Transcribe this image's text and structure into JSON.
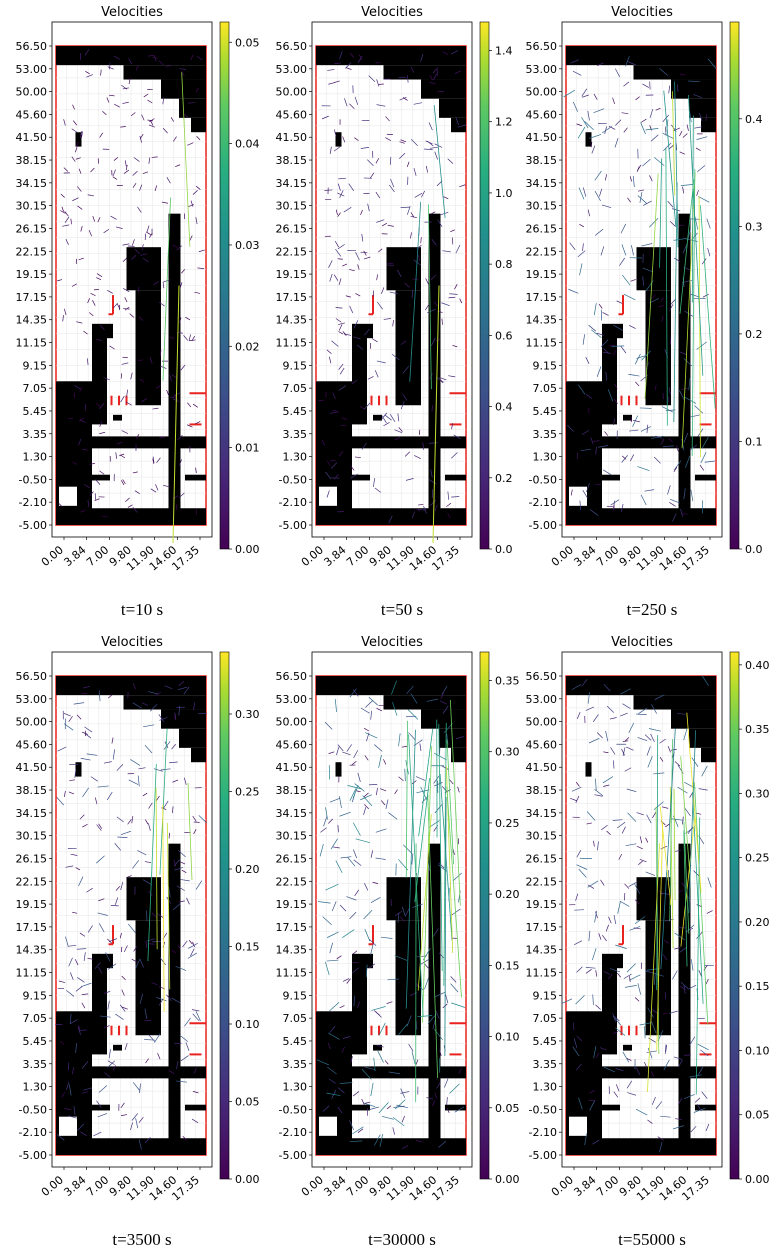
{
  "figure": {
    "panel_title": "Velocities"
  },
  "chart_data": [
    {
      "type": "quiver",
      "title": "Velocities",
      "caption": "t=10 s",
      "x_ticks": [
        "0.00",
        "3.84",
        "7.00",
        "9.80",
        "11.90",
        "14.60",
        "17.35"
      ],
      "y_ticks": [
        "56.50",
        "53.00",
        "50.00",
        "45.60",
        "41.50",
        "38.15",
        "34.15",
        "30.15",
        "26.15",
        "22.15",
        "19.15",
        "17.15",
        "14.35",
        "11.15",
        "9.15",
        "7.05",
        "5.45",
        "3.35",
        "1.30",
        "-0.50",
        "-2.10",
        "-5.00"
      ],
      "colorbar": {
        "min": 0.0,
        "max": 0.052,
        "ticks": [
          "0.00",
          "0.01",
          "0.02",
          "0.03",
          "0.04",
          "0.05"
        ],
        "tick_values": [
          0,
          0.01,
          0.02,
          0.03,
          0.04,
          0.05
        ],
        "colormap": "viridis"
      }
    },
    {
      "type": "quiver",
      "title": "Velocities",
      "caption": "t=50 s",
      "x_ticks": [
        "0.00",
        "3.84",
        "7.00",
        "9.80",
        "11.90",
        "14.60",
        "17.35"
      ],
      "y_ticks": [
        "56.50",
        "53.00",
        "50.00",
        "45.60",
        "41.50",
        "38.15",
        "34.15",
        "30.15",
        "26.15",
        "22.15",
        "19.15",
        "17.15",
        "14.35",
        "11.15",
        "9.15",
        "7.05",
        "5.45",
        "3.35",
        "1.30",
        "-0.50",
        "-2.10",
        "-5.00"
      ],
      "colorbar": {
        "min": 0.0,
        "max": 1.48,
        "ticks": [
          "0.0",
          "0.2",
          "0.4",
          "0.6",
          "0.8",
          "1.0",
          "1.2",
          "1.4"
        ],
        "tick_values": [
          0,
          0.2,
          0.4,
          0.6,
          0.8,
          1.0,
          1.2,
          1.4
        ],
        "colormap": "viridis"
      }
    },
    {
      "type": "quiver",
      "title": "Velocities",
      "caption": "t=250 s",
      "x_ticks": [
        "0.00",
        "3.84",
        "7.00",
        "9.80",
        "11.90",
        "14.60",
        "17.35"
      ],
      "y_ticks": [
        "56.50",
        "53.00",
        "50.00",
        "45.60",
        "41.50",
        "38.15",
        "34.15",
        "30.15",
        "26.15",
        "22.15",
        "19.15",
        "17.15",
        "14.35",
        "11.15",
        "9.15",
        "7.05",
        "5.45",
        "3.35",
        "1.30",
        "-0.50",
        "-2.10",
        "-5.00"
      ],
      "colorbar": {
        "min": 0.0,
        "max": 0.49,
        "ticks": [
          "0.0",
          "0.1",
          "0.2",
          "0.3",
          "0.4"
        ],
        "tick_values": [
          0,
          0.1,
          0.2,
          0.3,
          0.4
        ],
        "colormap": "viridis"
      }
    },
    {
      "type": "quiver",
      "title": "Velocities",
      "caption": "t=3500 s",
      "x_ticks": [
        "0.00",
        "3.84",
        "7.00",
        "9.80",
        "11.90",
        "14.60",
        "17.35"
      ],
      "y_ticks": [
        "56.50",
        "53.00",
        "50.00",
        "45.60",
        "41.50",
        "38.15",
        "34.15",
        "30.15",
        "26.15",
        "22.15",
        "19.15",
        "17.15",
        "14.35",
        "11.15",
        "9.15",
        "7.05",
        "5.45",
        "3.35",
        "1.30",
        "-0.50",
        "-2.10",
        "-5.00"
      ],
      "colorbar": {
        "min": 0.0,
        "max": 0.34,
        "ticks": [
          "0.00",
          "0.05",
          "0.10",
          "0.15",
          "0.20",
          "0.25",
          "0.30"
        ],
        "tick_values": [
          0,
          0.05,
          0.1,
          0.15,
          0.2,
          0.25,
          0.3
        ],
        "colormap": "viridis"
      }
    },
    {
      "type": "quiver",
      "title": "Velocities",
      "caption": "t=30000 s",
      "x_ticks": [
        "0.00",
        "3.84",
        "7.00",
        "9.80",
        "11.90",
        "14.60",
        "17.35"
      ],
      "y_ticks": [
        "56.50",
        "53.00",
        "50.00",
        "45.60",
        "41.50",
        "38.15",
        "34.15",
        "30.15",
        "26.15",
        "22.15",
        "19.15",
        "17.15",
        "14.35",
        "11.15",
        "9.15",
        "7.05",
        "5.45",
        "3.35",
        "1.30",
        "-0.50",
        "-2.10",
        "-5.00"
      ],
      "colorbar": {
        "min": 0.0,
        "max": 0.37,
        "ticks": [
          "0.00",
          "0.05",
          "0.10",
          "0.15",
          "0.20",
          "0.25",
          "0.30",
          "0.35"
        ],
        "tick_values": [
          0,
          0.05,
          0.1,
          0.15,
          0.2,
          0.25,
          0.3,
          0.35
        ],
        "colormap": "viridis"
      }
    },
    {
      "type": "quiver",
      "title": "Velocities",
      "caption": "t=55000 s",
      "x_ticks": [
        "0.00",
        "3.84",
        "7.00",
        "9.80",
        "11.90",
        "14.60",
        "17.35"
      ],
      "y_ticks": [
        "56.50",
        "53.00",
        "50.00",
        "45.60",
        "41.50",
        "38.15",
        "34.15",
        "30.15",
        "26.15",
        "22.15",
        "19.15",
        "17.15",
        "14.35",
        "11.15",
        "9.15",
        "7.05",
        "5.45",
        "3.35",
        "1.30",
        "-0.50",
        "-2.10",
        "-5.00"
      ],
      "colorbar": {
        "min": 0.0,
        "max": 0.41,
        "ticks": [
          "0.00",
          "0.05",
          "0.10",
          "0.15",
          "0.20",
          "0.25",
          "0.30",
          "0.35",
          "0.40"
        ],
        "tick_values": [
          0,
          0.05,
          0.1,
          0.15,
          0.2,
          0.25,
          0.3,
          0.35,
          0.4
        ],
        "colormap": "viridis"
      }
    }
  ],
  "colors": {
    "domain_border": "#e8221e",
    "solid": "#000000",
    "arrows_low": "#3b2a6e",
    "arrows_high": "#b8de29"
  }
}
